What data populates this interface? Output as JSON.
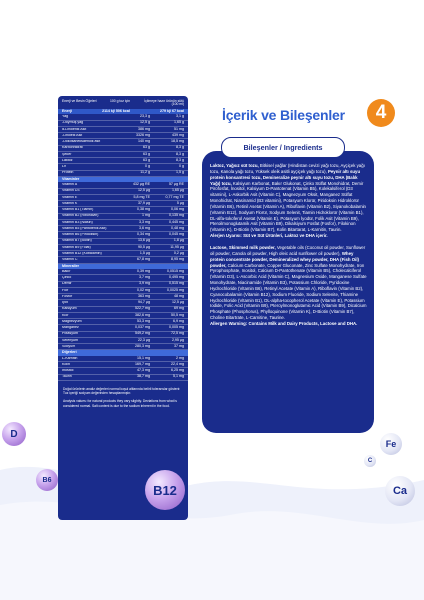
{
  "nutrition": {
    "header": {
      "col1": "Enerji ve Besin Öğeleri",
      "col2": "100 g toz için",
      "col3": "İçilmeye hazır ürünün sütü (100 ml)"
    },
    "energy": {
      "label": "Enerji",
      "v1": "2114 kj/ 506 kcal",
      "v2": "279 kj/ 67 kcal"
    },
    "rows_macro": [
      {
        "label": "Yağ",
        "v1": "23,3 g",
        "v2": "3,1 g"
      },
      {
        "label": "-Doymuş yağ",
        "v1": "12,5 g",
        "v2": "1,65 g"
      },
      {
        "label": "α-Linolenik Asit",
        "v1": "386 mg",
        "v2": "51 mg"
      },
      {
        "label": "-Linoleik Asit",
        "v1": "3326 mg",
        "v2": "439 mg"
      },
      {
        "label": "-Dokosaheksaenoik asit",
        "v1": "140 mg",
        "v2": "18,5 mg"
      },
      {
        "label": "Karbonhidrat",
        "v1": "63 g",
        "v2": "8,3 g"
      },
      {
        "label": "Şeker",
        "v1": "63 g",
        "v2": "8,3 g"
      },
      {
        "label": "Laktoz",
        "v1": "63 g",
        "v2": "8,3 g"
      },
      {
        "label": "Lif",
        "v1": "0 g",
        "v2": "0 g"
      },
      {
        "label": "Protein",
        "v1": "11,2 g",
        "v2": "1,5 g"
      }
    ],
    "sec_vitamins": "Vitaminler",
    "rows_vitamins": [
      {
        "label": "Vitamin A",
        "v1": "432 µg RE",
        "v2": "57 µg RE"
      },
      {
        "label": "Vitamin D3",
        "v1": "12,5 µg",
        "v2": "1,65 µg"
      },
      {
        "label": "Vitamin E",
        "v1": "5,8 mg TE",
        "v2": "0,77 mg TE"
      },
      {
        "label": "Vitamin K",
        "v1": "37,9 µg",
        "v2": "5 µg"
      },
      {
        "label": "Vitamin B1 (Tiamin)",
        "v1": "0,38 mg",
        "v2": "0,06 mg"
      },
      {
        "label": "Vitamin B2 (Riboflavin)",
        "v1": "1 mg",
        "v2": "0,135 mg"
      },
      {
        "label": "Vitamin B3 (Niasin)",
        "v1": "3,3 mg",
        "v2": "0,445 mg"
      },
      {
        "label": "Vitamin B5 (Pantotenik Asit)",
        "v1": "3,6 mg",
        "v2": "0,48 mg"
      },
      {
        "label": "Vitamin B6 (Piridoksin)",
        "v1": "0,34 mg",
        "v2": "0,045 mg"
      },
      {
        "label": "Vitamin B7 (Biotin)",
        "v1": "13,6 µg",
        "v2": "1,8 µg"
      },
      {
        "label": "Vitamin B9 (Folat)",
        "v1": "90,5 µg",
        "v2": "11,95 µg"
      },
      {
        "label": "Vitamin B12 (Kobalamin)",
        "v1": "1,5 µg",
        "v2": "0,2 µg"
      },
      {
        "label": "Vitamin C",
        "v1": "67,8 mg",
        "v2": "8,95 mg"
      }
    ],
    "sec_minerals": "Mineraller",
    "rows_minerals": [
      {
        "label": "Bakır",
        "v1": "0,39 mg",
        "v2": "0,0515 mg"
      },
      {
        "label": "Çinko",
        "v1": "3,7 mg",
        "v2": "0,495 mg"
      },
      {
        "label": "Demir",
        "v1": "3,9 mg",
        "v2": "0,515 mg"
      },
      {
        "label": "Flor",
        "v1": "0,02 mg",
        "v2": "0,0025 mg"
      },
      {
        "label": "Fosfor",
        "v1": "363 mg",
        "v2": "48 mg"
      },
      {
        "label": "İyot",
        "v1": "94,7 µg",
        "v2": "12,5 µg"
      },
      {
        "label": "Kalsiyum",
        "v1": "522,7 mg",
        "v2": "69 mg"
      },
      {
        "label": "Klor",
        "v1": "382,6 mg",
        "v2": "50,5 mg"
      },
      {
        "label": "Magnezyum",
        "v1": "53,3 mg",
        "v2": "6,9 mg"
      },
      {
        "label": "Manganez",
        "v1": "0,037 mg",
        "v2": "0,005 mg"
      },
      {
        "label": "Potasyum",
        "v1": "549,2 mg",
        "v2": "72,5 mg"
      },
      {
        "label": "Selenyum",
        "v1": "22,3 µg",
        "v2": "2,95 µg"
      },
      {
        "label": "Sodyum",
        "v1": "280,3 mg",
        "v2": "37 mg"
      }
    ],
    "sec_other": "Diğerleri",
    "rows_other": [
      {
        "label": "L-Karnitin",
        "v1": "15,1 mg",
        "v2": "2 mg"
      },
      {
        "label": "Kolin",
        "v1": "169,7 mg",
        "v2": "22,4 mg"
      },
      {
        "label": "İnositol",
        "v1": "47,3 mg",
        "v2": "6,25 mg"
      },
      {
        "label": "Taurin",
        "v1": "38,7 mg",
        "v2": "5,1 mg"
      }
    ],
    "note_tr": "Doğal ürünlerin analiz değerleri normal koşul altlarında belirli toleranslar gösterir. Tuz içeriği sodyum değerinden hesaplanmıştır.",
    "note_en": "Analysis values: for natural products they vary slightly. Deviations from what is considered normal. Salt content is due to the sodium inherent in the food."
  },
  "title": "İçerik ve Bileşenler",
  "badge": "4",
  "ingredients_title": "Bileşenler / Ingredients",
  "ingredients_tr_intro": "Laktoz, Yağsız süt tozu,",
  "ingredients_tr_body": " Bitkisel yağlar (Hindistan cevizi yağı tozu, Ayçiçek yağı tozu, Kanola yağı tozu, Yüksek oleik asitli ayçiçek yağı tozu),",
  "ingredients_tr_bold2": " Peynir altı suyu protein konsantresi tozu, Demineralize peynir altı suyu tozu, DHA (Balık Yağı) tozu,",
  "ingredients_tr_rest": " Kalsiyum Karbonat, Bakır Glukonat, Çinko Sülfat Monohidrat, Demir Pirofosfat, İnositol, Kalsiyum D-Pantotenat (Vitamin B5), Kolekalsiferol (D3 vitamini), L-Askorbik Asit (Vitamin C), Magnezyum Oksit, Manganez Sülfat Monohidrat, Niasinamid (B3 vitamini), Potasyum Klorür, Piridoksin Hidroklorür (Vitamin B6), Retinil Asetat (Vitamin A), Riboflavin (Vitamin B2), Siyanokobalamin (Vitamin B12), Sodyum Florür, Sodyum Selenit, Tiamin Hidroklorür (Vitamin B1), DL-alfa-tokoferol Asetat (Vitamin E), Potasyum İyodür, Folik Asit (Vitamin B9), Pteroilmonoglutamik Asit (Vitamin B9), Dikalsiyum Fosfat (Fosfor), Filokinon (Vitamin K), D-Biotin (Vitamin B7), Kolin Bitartarat, L-Karnitin, Taurin.",
  "ingredients_tr_allergen": "Alerjen Uyarısı: Süt ve Süt Ürünleri, Laktoz ve DHA içerir.",
  "ingredients_en_bold1": "Lactose, Skimmed milk powder,",
  "ingredients_en_body": " Vegetable oils (Coconut oil powder, Sunflower oil powder, Canola oil powder, High oleic acid sunflower oil powder),",
  "ingredients_en_bold2": " Whey protein concentrate powder, Demineralized whey powder, DHA (Fish Oil) powder,",
  "ingredients_en_rest": " Calcium Carbonate, Copper Gluconate, Zinc Sulfate Monohydrate, Iron Pyrophosphate, Inositol, Calcium D-Pantothenate (Vitamin B5), Cholecalciferol (Vitamin D3), L-Ascorbic Acid (Vitamin C), Magnesium Oxide, Manganese Sulfate Monohydrate, Niacinamide (Vitamin B3), Potassium Chloride, Pyridoxine Hydrochloride (Vitamin B6), Retinyl Acetate (Vitamin A), Riboflavin (Vitamin B2), Cyanocobalamin (Vitamin B12), Sodium Fluoride, Sodium Selenite, Thiamine Hydrochloride (Vitamin B1), DL-alpha-tocopherol Acetate (Vitamin E), Potassium Iodide, Folic Acid (Vitamin B9), Pteroylmonoglutamic Acid (Vitamin B9), Dicalcium Phosphate (Phosphorus), Phylloquinone (Vitamin K), D-Biotin (Vitamin B7), Choline Bitartrate, L-Carnitine, Taurine.",
  "ingredients_en_allergen": "Allergen Warning: Contains Milk and Dairy Products, Lactose and DHA.",
  "bubbles": {
    "fe": "Fe",
    "c": "C",
    "d": "D",
    "b12": "B12",
    "ca": "Ca",
    "b6": "B6"
  },
  "colors": {
    "navy": "#1a2c8c",
    "accent_blue": "#2f5fcf",
    "orange": "#f08a1c",
    "purple": "#8e5cc7"
  }
}
